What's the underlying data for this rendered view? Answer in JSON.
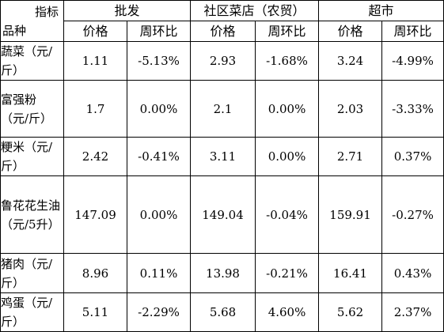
{
  "header": {
    "corner_top": "指标",
    "corner_bottom": "品种",
    "groups": [
      "批发",
      "社区菜店（农贸）",
      "超市"
    ],
    "subheaders": [
      "价格",
      "周环比",
      "价格",
      "周环比",
      "价格",
      "周环比"
    ]
  },
  "rows": [
    {
      "name": "蔬菜（元/斤）",
      "values": [
        "1.11",
        "-5.13%",
        "2.93",
        "-1.68%",
        "3.24",
        "-4.99%"
      ]
    },
    {
      "name": "富强粉（元/斤）",
      "values": [
        "1.7",
        "0.00%",
        "2.1",
        "0.00%",
        "2.03",
        "-3.33%"
      ]
    },
    {
      "name": "粳米（元/斤）",
      "values": [
        "2.42",
        "-0.41%",
        "3.11",
        "0.00%",
        "2.71",
        "0.37%"
      ]
    },
    {
      "name": "鲁花花生油（元/5升）",
      "values": [
        "147.09",
        "0.00%",
        "149.04",
        "-0.04%",
        "159.91",
        "-0.27%"
      ]
    },
    {
      "name": "猪肉（元/斤）",
      "values": [
        "8.96",
        "0.11%",
        "13.98",
        "-0.21%",
        "16.41",
        "0.43%"
      ]
    },
    {
      "name": "鸡蛋（元/斤）",
      "values": [
        "5.11",
        "-2.29%",
        "5.68",
        "4.60%",
        "5.62",
        "2.37%"
      ]
    }
  ]
}
